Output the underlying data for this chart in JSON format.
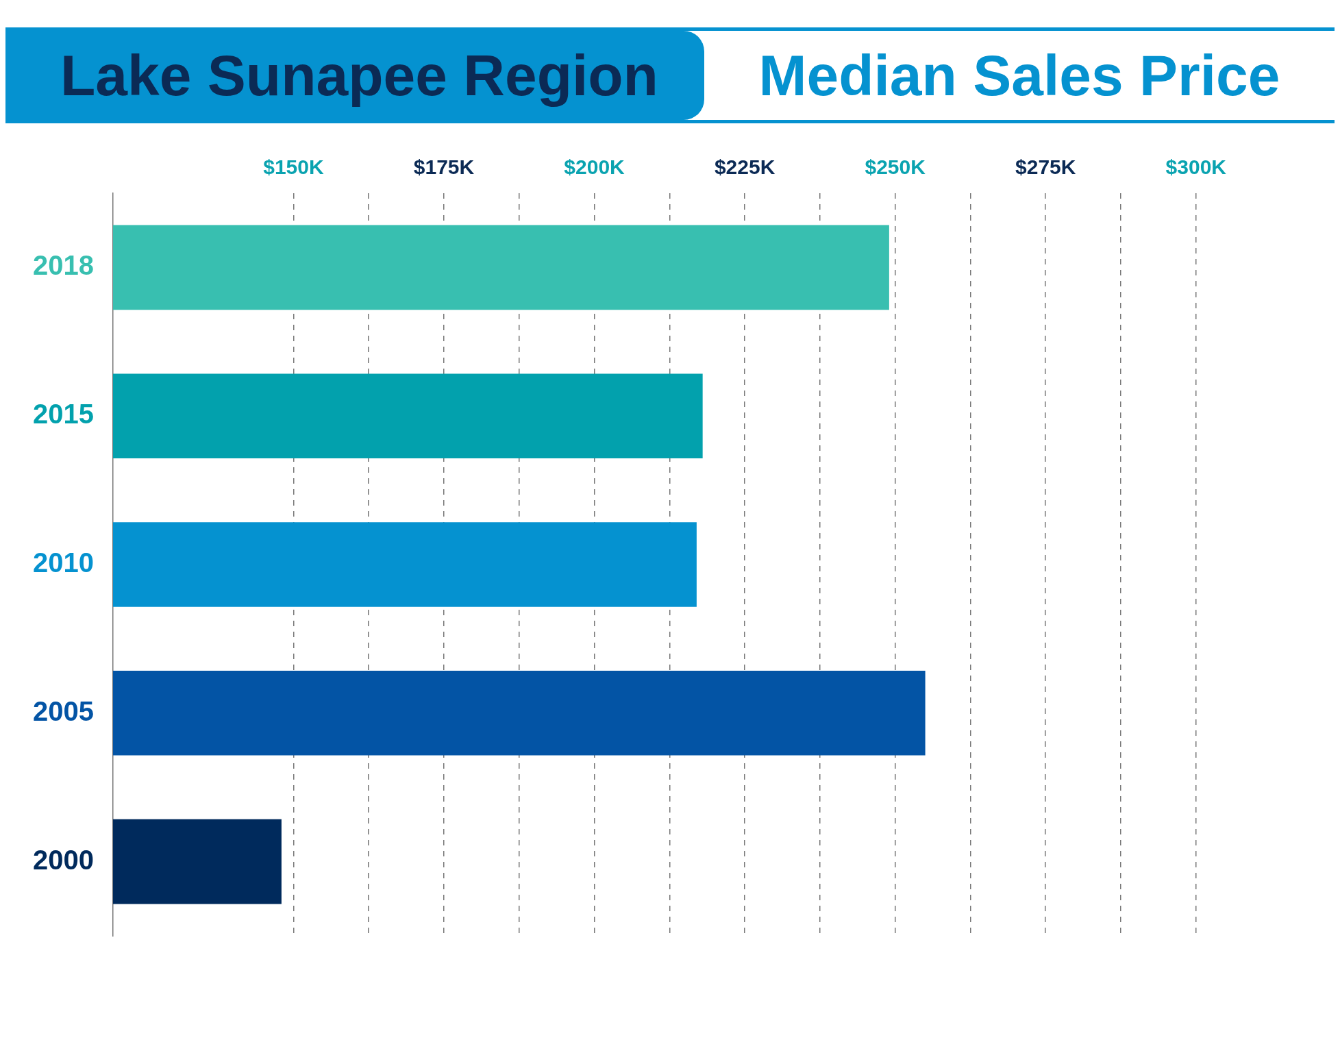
{
  "chart_data": {
    "type": "bar",
    "title": "Lake Sunapee Region",
    "subtitle": "Median Sales Price",
    "orientation": "horizontal",
    "categories": [
      "2018",
      "2015",
      "2010",
      "2005",
      "2000"
    ],
    "values": [
      249,
      218,
      217,
      255,
      148
    ],
    "colors": [
      "#38bfb0",
      "#02a1ad",
      "#0592d0",
      "#0354a5",
      "#002a5c"
    ],
    "xlim": [
      120,
      300
    ],
    "xticks": [
      {
        "value": 150,
        "label": "$150K"
      },
      {
        "value": 162.5,
        "label": null
      },
      {
        "value": 175,
        "label": "$175K"
      },
      {
        "value": 187.5,
        "label": null
      },
      {
        "value": 200,
        "label": "$200K"
      },
      {
        "value": 212.5,
        "label": null
      },
      {
        "value": 225,
        "label": "$225K"
      },
      {
        "value": 237.5,
        "label": null
      },
      {
        "value": 250,
        "label": "$250K"
      },
      {
        "value": 262.5,
        "label": null
      },
      {
        "value": 275,
        "label": "$275K"
      },
      {
        "value": 287.5,
        "label": null
      },
      {
        "value": 300,
        "label": "$300K"
      }
    ],
    "grid": "x",
    "legend": false
  }
}
